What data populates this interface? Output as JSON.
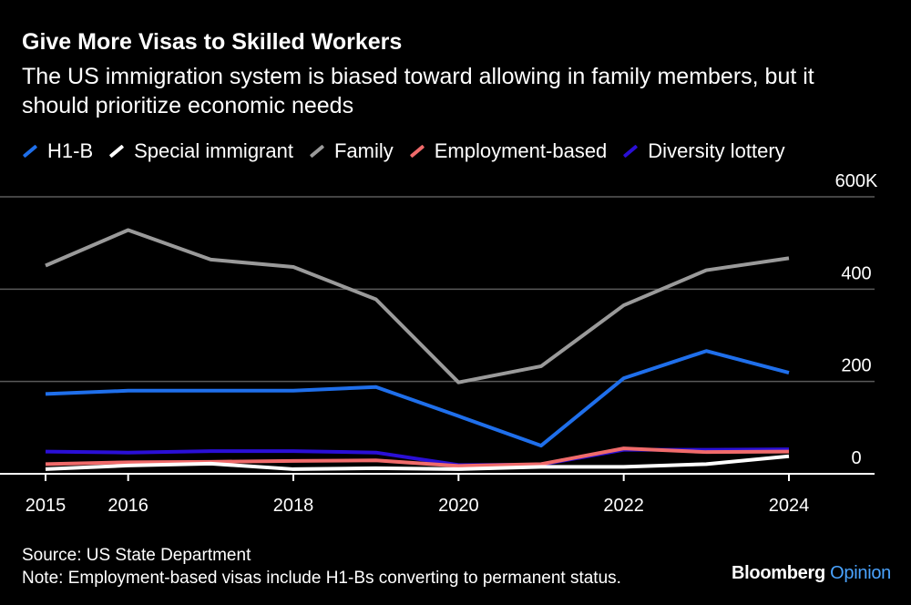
{
  "header": {
    "title": "Give More Visas to Skilled Workers",
    "subtitle": "The US immigration system is biased toward allowing in family members, but it should prioritize economic needs"
  },
  "chart_data": {
    "type": "line",
    "x": [
      2015,
      2016,
      2017,
      2018,
      2019,
      2020,
      2021,
      2022,
      2023,
      2024
    ],
    "x_tick_labels": [
      "2015",
      "2016",
      "2018",
      "2020",
      "2022",
      "2024"
    ],
    "x_tick_values": [
      2015,
      2016,
      2018,
      2020,
      2022,
      2024
    ],
    "y_tick_labels": [
      "600K",
      "400",
      "200",
      "0"
    ],
    "y_tick_values": [
      600,
      400,
      200,
      0
    ],
    "ylim": [
      0,
      600
    ],
    "unit": "thousands",
    "legend_position": "top-left",
    "series": [
      {
        "name": "Family",
        "color": "#9a9a9a",
        "values": [
          451,
          528,
          464,
          448,
          378,
          198,
          233,
          365,
          441,
          467
        ]
      },
      {
        "name": "H1-B",
        "color": "#1f6feb",
        "values": [
          173,
          180,
          180,
          180,
          188,
          125,
          61,
          207,
          266,
          219
        ]
      },
      {
        "name": "Diversity lottery",
        "color": "#2a0fd6",
        "values": [
          48,
          46,
          49,
          49,
          46,
          19,
          20,
          52,
          52,
          53
        ]
      },
      {
        "name": "Employment-based",
        "color": "#f06b6b",
        "values": [
          21,
          25,
          26,
          28,
          29,
          17,
          21,
          55,
          47,
          48
        ]
      },
      {
        "name": "Special immigrant",
        "color": "#ffffff",
        "values": [
          10,
          18,
          22,
          10,
          12,
          10,
          15,
          15,
          21,
          38
        ]
      }
    ],
    "legend_order": [
      "H1-B",
      "Special immigrant",
      "Family",
      "Employment-based",
      "Diversity lottery"
    ]
  },
  "footer": {
    "source": "Source: US State Department",
    "note": "Note: Employment-based visas include H1-Bs converting to permanent status."
  },
  "brand": {
    "name": "Bloomberg",
    "section": "Opinion"
  }
}
